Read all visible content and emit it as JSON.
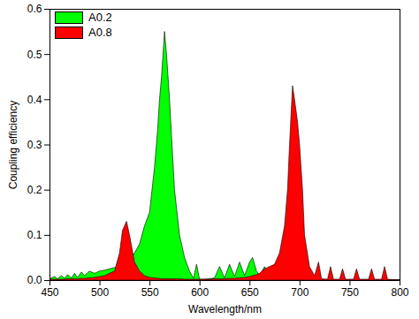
{
  "chart_data": {
    "type": "area",
    "x_label": "Wavelength/nm",
    "y_label": "Coupling efficiency",
    "legend": "upper left",
    "grid": false,
    "xlim": [
      450,
      800
    ],
    "xticks": [
      450,
      500,
      550,
      600,
      650,
      700,
      750,
      800
    ],
    "ylim": [
      0,
      0.6
    ],
    "yticks": [
      {
        "value": 0,
        "label": "0.0"
      },
      0.1,
      0.2,
      0.3,
      0.4,
      0.5,
      0.6
    ],
    "x": [
      450,
      455,
      458,
      462,
      465,
      468,
      472,
      475,
      478,
      482,
      485,
      490,
      495,
      500,
      505,
      510,
      515,
      520,
      523,
      527,
      530,
      535,
      540,
      545,
      550,
      555,
      558,
      560,
      562,
      565,
      567,
      570,
      572,
      575,
      580,
      585,
      590,
      594,
      597,
      600,
      605,
      610,
      615,
      620,
      625,
      630,
      635,
      640,
      645,
      650,
      653,
      657,
      660,
      665,
      670,
      675,
      680,
      685,
      688,
      690,
      693,
      695,
      698,
      700,
      703,
      705,
      710,
      715,
      719,
      722,
      728,
      731,
      734,
      740,
      743,
      746,
      754,
      757,
      760,
      769,
      772,
      775,
      782,
      785,
      788,
      795,
      800
    ],
    "series": [
      {
        "name": "A0.2",
        "color": "#00ff00",
        "values": [
          0.003,
          0.008,
          0.003,
          0.01,
          0.004,
          0.012,
          0.005,
          0.015,
          0.006,
          0.018,
          0.01,
          0.02,
          0.015,
          0.02,
          0.022,
          0.025,
          0.028,
          0.03,
          0.03,
          0.035,
          0.04,
          0.06,
          0.08,
          0.12,
          0.15,
          0.25,
          0.33,
          0.4,
          0.45,
          0.55,
          0.5,
          0.4,
          0.32,
          0.2,
          0.1,
          0.05,
          0.02,
          0.004,
          0.035,
          0.002,
          0.002,
          0.003,
          0.005,
          0.03,
          0.005,
          0.035,
          0.008,
          0.04,
          0.01,
          0.04,
          0.05,
          0.02,
          0.01,
          0.03,
          0.01,
          0.02,
          0.005,
          0.002,
          0.002,
          0.002,
          0.002,
          0.001,
          0.001,
          0.001,
          0.001,
          0.001,
          0.001,
          0.001,
          0.001,
          0.001,
          0.001,
          0.001,
          0.001,
          0.001,
          0.001,
          0.001,
          0.001,
          0.001,
          0.001,
          0.001,
          0.001,
          0.001,
          0.001,
          0.001,
          0.001,
          0.001,
          0.001
        ]
      },
      {
        "name": "A0.8",
        "color": "#ff0000",
        "values": [
          0.002,
          0.002,
          0.002,
          0.002,
          0.002,
          0.003,
          0.003,
          0.003,
          0.003,
          0.004,
          0.004,
          0.005,
          0.006,
          0.008,
          0.01,
          0.015,
          0.02,
          0.06,
          0.11,
          0.13,
          0.1,
          0.04,
          0.02,
          0.01,
          0.006,
          0.005,
          0.004,
          0.004,
          0.003,
          0.003,
          0.003,
          0.003,
          0.003,
          0.003,
          0.003,
          0.002,
          0.002,
          0.002,
          0.002,
          0.002,
          0.002,
          0.002,
          0.003,
          0.003,
          0.003,
          0.004,
          0.004,
          0.005,
          0.006,
          0.008,
          0.01,
          0.012,
          0.015,
          0.025,
          0.03,
          0.035,
          0.06,
          0.12,
          0.2,
          0.3,
          0.43,
          0.4,
          0.35,
          0.3,
          0.2,
          0.1,
          0.03,
          0.01,
          0.04,
          0.003,
          0.002,
          0.03,
          0.002,
          0.002,
          0.025,
          0.002,
          0.002,
          0.025,
          0.002,
          0.002,
          0.025,
          0.002,
          0.002,
          0.03,
          0.002,
          0.001,
          0.001
        ]
      }
    ]
  }
}
